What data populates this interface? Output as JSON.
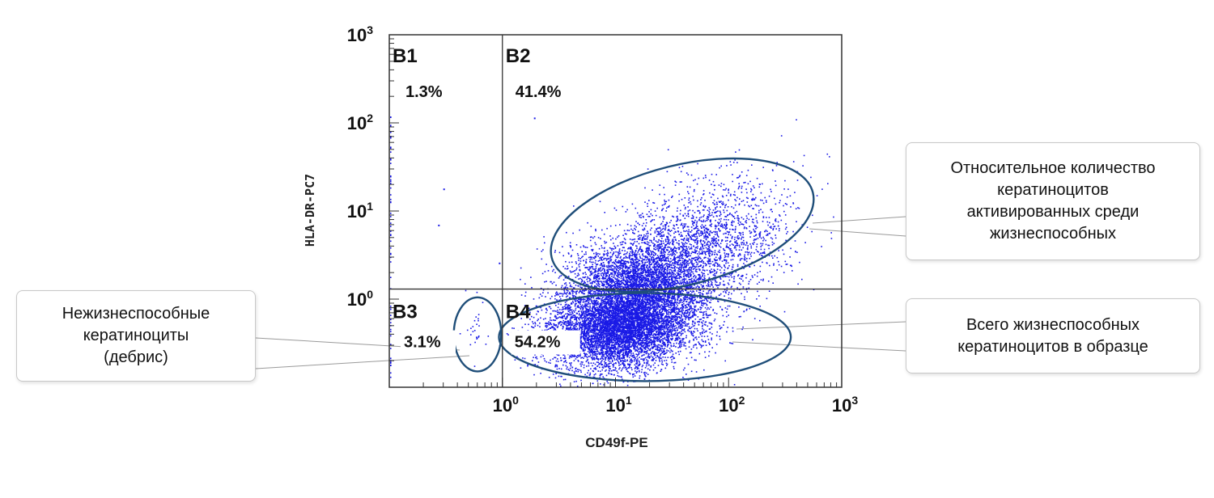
{
  "chart_data": {
    "type": "scatter",
    "subtype": "flow-cytometry-dot-plot",
    "xlabel": "CD49f-PE",
    "ylabel": "HLA-DR-PC7",
    "xscale": "log",
    "yscale": "log",
    "xlim": [
      0.1,
      1000
    ],
    "ylim": [
      0.1,
      1000
    ],
    "x_ticks": [
      {
        "value": 1,
        "base": "10",
        "exp": "0"
      },
      {
        "value": 10,
        "base": "10",
        "exp": "1"
      },
      {
        "value": 100,
        "base": "10",
        "exp": "2"
      },
      {
        "value": 1000,
        "base": "10",
        "exp": "3"
      }
    ],
    "y_ticks": [
      {
        "value": 1,
        "base": "10",
        "exp": "0"
      },
      {
        "value": 10,
        "base": "10",
        "exp": "1"
      },
      {
        "value": 100,
        "base": "10",
        "exp": "2"
      },
      {
        "value": 1000,
        "base": "10",
        "exp": "3"
      }
    ],
    "gate": {
      "x": 1,
      "y": 1.3
    },
    "quadrants": [
      {
        "id": "B1",
        "label": "B1",
        "percent": "1.3%"
      },
      {
        "id": "B2",
        "label": "B2",
        "percent": "41.4%"
      },
      {
        "id": "B3",
        "label": "B3",
        "percent": "3.1%"
      },
      {
        "id": "B4",
        "label": "B4",
        "percent": "54.2%"
      }
    ],
    "point_color": "#1a1ae6",
    "populations": [
      {
        "name": "viable-main",
        "count": 7000,
        "x_log_mean": 1.05,
        "x_log_sd": 0.33,
        "y_log_mean": -0.3,
        "y_log_sd": 0.24
      },
      {
        "name": "activated-cloud",
        "count": 2600,
        "x_log_mean": 1.65,
        "x_log_sd": 0.42,
        "y_log_mean": 0.55,
        "y_log_sd": 0.35
      },
      {
        "name": "activated-dense",
        "count": 2400,
        "x_log_mean": 1.2,
        "x_log_sd": 0.3,
        "y_log_mean": 0.22,
        "y_log_sd": 0.2
      },
      {
        "name": "debris",
        "count": 26,
        "x_log_mean": -0.25,
        "x_log_sd": 0.07,
        "y_log_mean": -0.4,
        "y_log_sd": 0.18
      }
    ],
    "sparse_points": [
      {
        "x": 1.9,
        "y": 115
      },
      {
        "x": 0.3,
        "y": 18
      },
      {
        "x": 0.27,
        "y": 7
      },
      {
        "x": 0.93,
        "y": 2.6
      }
    ],
    "ellipses": [
      {
        "name": "activated-gate",
        "cx_log": 1.59,
        "cy_log": 0.84,
        "rx_dec": 1.19,
        "ry_dec": 0.68,
        "angle_deg": -14,
        "color": "#1f4e79"
      },
      {
        "name": "viable-gate",
        "cx_log": 1.26,
        "cy_log": -0.43,
        "rx_dec": 1.29,
        "ry_dec": 0.5,
        "angle_deg": 0,
        "color": "#1f4e79"
      },
      {
        "name": "debris-gate",
        "cx_log": -0.22,
        "cy_log": -0.4,
        "rx_dec": 0.21,
        "ry_dec": 0.42,
        "angle_deg": 0,
        "color": "#1f4e79"
      }
    ],
    "callouts": [
      {
        "id": "dead",
        "lines": [
          "Нежизнеспособные",
          "кератиноциты",
          "(дебрис)"
        ]
      },
      {
        "id": "active",
        "lines": [
          "Относительное количество",
          "кератиноцитов",
          "активированных среди",
          "жизнеспособных"
        ]
      },
      {
        "id": "live",
        "lines": [
          "Всего жизнеспособных",
          "кератиноцитов в образце"
        ]
      }
    ]
  }
}
